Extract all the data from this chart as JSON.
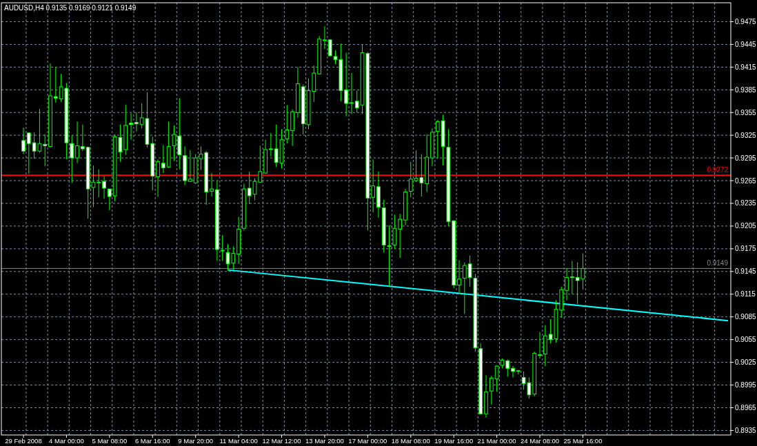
{
  "chart_data": {
    "type": "candlestick",
    "title": "AUDUSD,H4  0.9135 0.9169 0.9121 0.9149",
    "categories": [
      "29 Feb 2008",
      null,
      null,
      null,
      null,
      null,
      null,
      null,
      "4 Mar 00:00",
      null,
      null,
      null,
      null,
      null,
      null,
      null,
      "5 Mar 08:00",
      null,
      null,
      null,
      null,
      null,
      null,
      null,
      "6 Mar 16:00",
      null,
      null,
      null,
      null,
      null,
      null,
      null,
      "9 Mar 20:00",
      null,
      null,
      null,
      null,
      null,
      null,
      null,
      "11 Mar 04:00",
      null,
      null,
      null,
      null,
      null,
      null,
      null,
      "12 Mar 12:00",
      null,
      null,
      null,
      null,
      null,
      null,
      null,
      "13 Mar 20:00",
      null,
      null,
      null,
      null,
      null,
      null,
      null,
      "17 Mar 00:00",
      null,
      null,
      null,
      null,
      null,
      null,
      null,
      "18 Mar 08:00",
      null,
      null,
      null,
      null,
      null,
      null,
      null,
      "19 Mar 16:00",
      null,
      null,
      null,
      null,
      null,
      null,
      null,
      "21 Mar 00:00",
      null,
      null,
      null,
      null,
      null,
      null,
      null,
      "24 Mar 08:00",
      null,
      null,
      null,
      null,
      null,
      null,
      null,
      "25 Mar 16:00",
      null,
      null,
      null,
      null,
      null,
      null,
      null,
      null,
      null,
      null,
      null,
      null,
      null,
      null,
      null,
      null,
      null,
      null,
      null,
      null,
      null,
      null,
      null,
      null,
      null,
      null,
      null
    ],
    "ohlc": [
      [
        0.9318,
        0.9335,
        0.93,
        0.9304
      ],
      [
        0.9328,
        0.9329,
        0.9274,
        0.9314
      ],
      [
        0.9315,
        0.9329,
        0.9294,
        0.9304
      ],
      [
        0.9304,
        0.936,
        0.9302,
        0.9314
      ],
      [
        0.9313,
        0.9326,
        0.9284,
        0.9311
      ],
      [
        0.931,
        0.942,
        0.9309,
        0.9377
      ],
      [
        0.9376,
        0.9415,
        0.9368,
        0.9374
      ],
      [
        0.9373,
        0.9406,
        0.9369,
        0.9389
      ],
      [
        0.9387,
        0.9394,
        0.9293,
        0.9315
      ],
      [
        0.9314,
        0.9325,
        0.9262,
        0.9295
      ],
      [
        0.9295,
        0.9343,
        0.9288,
        0.9311
      ],
      [
        0.931,
        0.9339,
        0.9304,
        0.9307
      ],
      [
        0.9309,
        0.931,
        0.9215,
        0.9254
      ],
      [
        0.9256,
        0.9285,
        0.923,
        0.9263
      ],
      [
        0.9263,
        0.928,
        0.9243,
        0.9263
      ],
      [
        0.9264,
        0.9271,
        0.9241,
        0.9255
      ],
      [
        0.9254,
        0.9254,
        0.9226,
        0.9244
      ],
      [
        0.9245,
        0.9326,
        0.9238,
        0.9323
      ],
      [
        0.9322,
        0.9339,
        0.929,
        0.9303
      ],
      [
        0.9306,
        0.9365,
        0.9299,
        0.9338
      ],
      [
        0.9341,
        0.9354,
        0.9319,
        0.9339
      ],
      [
        0.9342,
        0.9355,
        0.933,
        0.934
      ],
      [
        0.9339,
        0.9367,
        0.9334,
        0.9348
      ],
      [
        0.9347,
        0.9382,
        0.9309,
        0.9313
      ],
      [
        0.9314,
        0.9323,
        0.9252,
        0.9271
      ],
      [
        0.927,
        0.9293,
        0.9244,
        0.929
      ],
      [
        0.9288,
        0.9312,
        0.9275,
        0.9282
      ],
      [
        0.9283,
        0.9343,
        0.9282,
        0.931
      ],
      [
        0.9311,
        0.9338,
        0.9291,
        0.9326
      ],
      [
        0.9324,
        0.9374,
        0.928,
        0.9299
      ],
      [
        0.9298,
        0.931,
        0.9259,
        0.9265
      ],
      [
        0.9264,
        0.9305,
        0.9263,
        0.9267
      ],
      [
        0.9262,
        0.93,
        0.9261,
        0.9295
      ],
      [
        0.9294,
        0.931,
        0.9279,
        0.93
      ],
      [
        0.9302,
        0.9304,
        0.9233,
        0.925
      ],
      [
        0.9251,
        0.9275,
        0.9244,
        0.9254
      ],
      [
        0.9253,
        0.9265,
        0.9159,
        0.9174
      ],
      [
        0.9173,
        0.9193,
        0.9159,
        0.9173
      ],
      [
        0.917,
        0.9181,
        0.9146,
        0.9155
      ],
      [
        0.9156,
        0.9178,
        0.9147,
        0.9169
      ],
      [
        0.9168,
        0.9217,
        0.9155,
        0.9201
      ],
      [
        0.9202,
        0.9261,
        0.9199,
        0.9254
      ],
      [
        0.9255,
        0.9277,
        0.9234,
        0.9245
      ],
      [
        0.9247,
        0.9268,
        0.9239,
        0.9264
      ],
      [
        0.9263,
        0.9311,
        0.9262,
        0.9277
      ],
      [
        0.9275,
        0.9319,
        0.9274,
        0.9306
      ],
      [
        0.9307,
        0.9328,
        0.9297,
        0.9306
      ],
      [
        0.9307,
        0.9339,
        0.9283,
        0.9289
      ],
      [
        0.9288,
        0.9333,
        0.9281,
        0.9319
      ],
      [
        0.932,
        0.9365,
        0.9314,
        0.9332
      ],
      [
        0.9331,
        0.9359,
        0.9311,
        0.9356
      ],
      [
        0.9355,
        0.9415,
        0.9348,
        0.9393
      ],
      [
        0.9389,
        0.9392,
        0.9326,
        0.934
      ],
      [
        0.9339,
        0.94,
        0.9333,
        0.9384
      ],
      [
        0.9383,
        0.9417,
        0.9369,
        0.9407
      ],
      [
        0.9406,
        0.9456,
        0.9405,
        0.9452
      ],
      [
        0.9451,
        0.9469,
        0.9439,
        0.9451
      ],
      [
        0.9451,
        0.9452,
        0.9429,
        0.943
      ],
      [
        0.9429,
        0.9437,
        0.9419,
        0.9425
      ],
      [
        0.9425,
        0.9446,
        0.937,
        0.9384
      ],
      [
        0.9385,
        0.9434,
        0.935,
        0.9367
      ],
      [
        0.9368,
        0.9407,
        0.9353,
        0.9368
      ],
      [
        0.937,
        0.9384,
        0.9355,
        0.9361
      ],
      [
        0.9365,
        0.9445,
        0.9353,
        0.9434
      ],
      [
        0.9433,
        0.9435,
        0.9199,
        0.9242
      ],
      [
        0.9243,
        0.9293,
        0.9223,
        0.9258
      ],
      [
        0.9257,
        0.9277,
        0.9216,
        0.923
      ],
      [
        0.9229,
        0.924,
        0.917,
        0.918
      ],
      [
        0.9179,
        0.9206,
        0.9126,
        0.9179
      ],
      [
        0.918,
        0.922,
        0.9175,
        0.9202
      ],
      [
        0.9201,
        0.9221,
        0.9163,
        0.9214
      ],
      [
        0.9213,
        0.9254,
        0.9206,
        0.925
      ],
      [
        0.9251,
        0.929,
        0.9243,
        0.9267
      ],
      [
        0.9265,
        0.9305,
        0.9263,
        0.9268
      ],
      [
        0.9269,
        0.93,
        0.9244,
        0.9262
      ],
      [
        0.9261,
        0.9326,
        0.925,
        0.9296
      ],
      [
        0.9295,
        0.9334,
        0.9284,
        0.9329
      ],
      [
        0.933,
        0.9345,
        0.9294,
        0.9343
      ],
      [
        0.9344,
        0.9352,
        0.9285,
        0.931
      ],
      [
        0.9309,
        0.9333,
        0.9205,
        0.9211
      ],
      [
        0.9212,
        0.9212,
        0.9123,
        0.9127
      ],
      [
        0.9127,
        0.916,
        0.9115,
        0.9135
      ],
      [
        0.9136,
        0.9157,
        0.9089,
        0.9153
      ],
      [
        0.9155,
        0.9166,
        0.9125,
        0.9137
      ],
      [
        0.9136,
        0.9142,
        0.9039,
        0.9044
      ],
      [
        0.9043,
        0.905,
        0.8956,
        0.8957
      ],
      [
        0.8957,
        0.9008,
        0.8952,
        0.8986
      ],
      [
        0.8987,
        0.9007,
        0.8969,
        0.9004
      ],
      [
        0.9003,
        0.9021,
        0.8986,
        0.902
      ],
      [
        0.9021,
        0.903,
        0.9017,
        0.9028
      ],
      [
        0.9027,
        0.9029,
        0.9006,
        0.9017
      ],
      [
        0.9017,
        0.902,
        0.9005,
        0.9013
      ],
      [
        0.9014,
        0.9015,
        0.9009,
        0.9014
      ],
      [
        0.9005,
        0.9013,
        0.8989,
        0.8997
      ],
      [
        0.8998,
        0.9005,
        0.8977,
        0.8982
      ],
      [
        0.8983,
        0.9039,
        0.898,
        0.9037
      ],
      [
        0.9035,
        0.9065,
        0.903,
        0.9034
      ],
      [
        0.9036,
        0.9074,
        0.902,
        0.906
      ],
      [
        0.9062,
        0.9082,
        0.905,
        0.9055
      ],
      [
        0.9056,
        0.9107,
        0.9051,
        0.9095
      ],
      [
        0.9094,
        0.9125,
        0.9084,
        0.9121
      ],
      [
        0.912,
        0.9149,
        0.9107,
        0.9137
      ],
      [
        0.9138,
        0.9159,
        0.9115,
        0.9137
      ],
      [
        0.9137,
        0.9157,
        0.9102,
        0.9133
      ],
      [
        0.9135,
        0.9169,
        0.9121,
        0.9149
      ],
      null,
      null,
      null,
      null,
      null,
      null,
      null,
      null,
      null,
      null,
      null,
      null,
      null,
      null,
      null,
      null,
      null,
      null,
      null,
      null,
      null,
      null,
      null,
      null,
      null,
      null,
      null
    ],
    "series": [
      {
        "type": "line",
        "color": "#00ffff",
        "values": [
          null,
          null,
          null,
          null,
          null,
          null,
          null,
          null,
          null,
          null,
          null,
          null,
          null,
          null,
          null,
          null,
          null,
          null,
          null,
          null,
          null,
          null,
          null,
          null,
          null,
          null,
          null,
          null,
          null,
          null,
          null,
          null,
          null,
          null,
          null,
          null,
          null,
          null,
          0.9147,
          null,
          null,
          null,
          null,
          null,
          null,
          null,
          null,
          null,
          null,
          null,
          null,
          null,
          null,
          null,
          null,
          null,
          null,
          null,
          null,
          null,
          null,
          null,
          null,
          null,
          null,
          null,
          null,
          null,
          null,
          null,
          null,
          null,
          null,
          null,
          null,
          null,
          null,
          null,
          null,
          null,
          null,
          null,
          null,
          null,
          null,
          null,
          null,
          null,
          null,
          null,
          null,
          null,
          null,
          null,
          null,
          null,
          null,
          null,
          null,
          null,
          null,
          null,
          null,
          null,
          null,
          null,
          null,
          null,
          null,
          null,
          null,
          null,
          null,
          null,
          null,
          null,
          null,
          null,
          null,
          null,
          null,
          null,
          null,
          null,
          null,
          null,
          null,
          null,
          null,
          null,
          null,
          0.908
        ]
      }
    ],
    "ylim": [
      0.8929,
      0.95
    ],
    "yticks": [
      0.8935,
      0.8965,
      0.8995,
      0.9025,
      0.9055,
      0.9085,
      0.9115,
      0.9145,
      0.9175,
      0.9205,
      0.9235,
      0.9265,
      0.9295,
      0.9325,
      0.9355,
      0.9385,
      0.9415,
      0.9445,
      0.9475
    ],
    "grid": true,
    "ref_lines": [
      {
        "axis": "y",
        "value": 0.9272,
        "label": "0.9272",
        "color": "#ff0000"
      },
      {
        "axis": "y",
        "value": 0.9149,
        "label": "0.9149",
        "color": "#808080"
      }
    ]
  }
}
